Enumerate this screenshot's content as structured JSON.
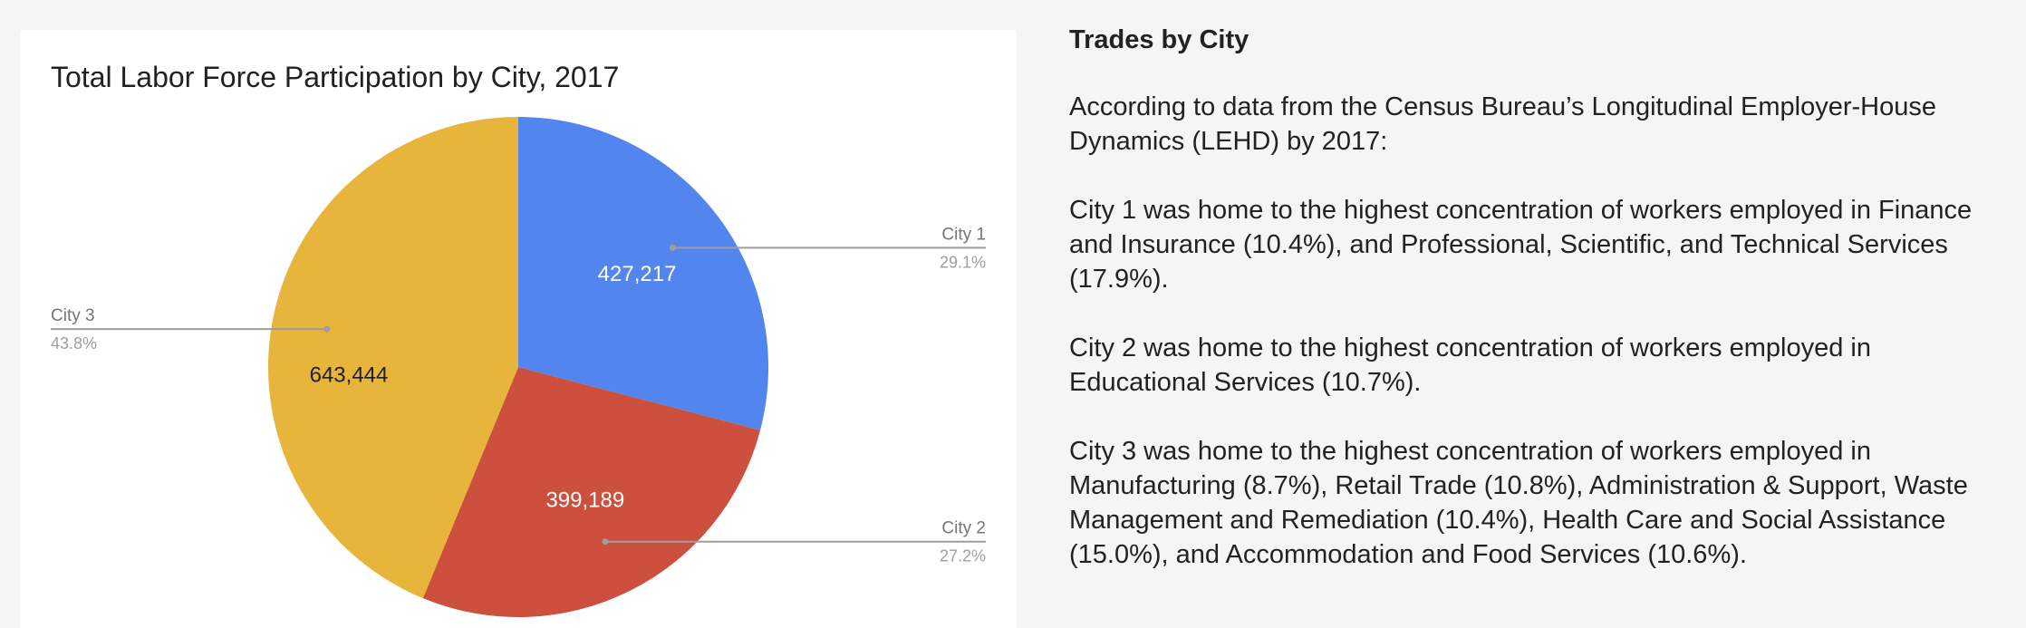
{
  "chart_data": {
    "type": "pie",
    "title": "Total Labor Force Participation by City, 2017",
    "slices": [
      {
        "label": "City 1",
        "value": 427217,
        "value_label": "427,217",
        "percent_label": "29.1%",
        "color": "#5385ee"
      },
      {
        "label": "City 2",
        "value": 399189,
        "value_label": "399,189",
        "percent_label": "27.2%",
        "color": "#cd503e"
      },
      {
        "label": "City 3",
        "value": 643444,
        "value_label": "643,444",
        "percent_label": "43.8%",
        "color": "#e8b53c"
      }
    ],
    "label_color": "#757575",
    "leader_color": "#9e9e9e"
  },
  "article": {
    "heading": "Trades by City",
    "paragraphs": [
      "According to data from the Census Bureau’s Longitudinal Employer-House Dynamics (LEHD) by 2017:",
      "City 1 was home to the highest concentration of workers employed in Finance and Insurance (10.4%), and Professional, Scientific, and Technical Services (17.9%).",
      "City 2 was home to the highest concentration of workers employed in Educational Services (10.7%).",
      "City 3 was home to the highest concentration of workers employed in Manufacturing (8.7%), Retail Trade (10.8%), Administration & Support, Waste Management and Remediation (10.4%), Health Care and Social Assistance (15.0%), and Accommodation and Food Services (10.6%)."
    ]
  }
}
